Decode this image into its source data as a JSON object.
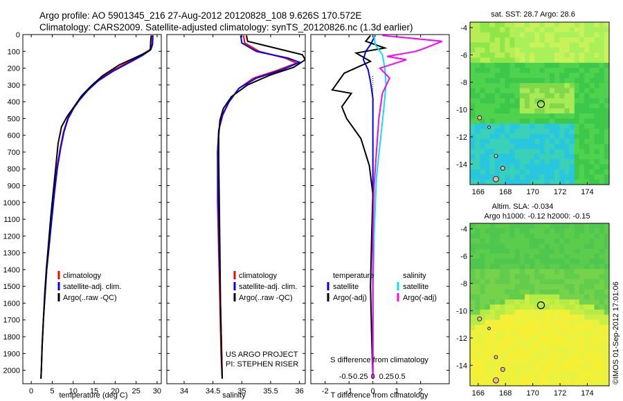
{
  "title": {
    "line1": "Argo profile: AO 5901345_216 27-Aug-2012 20120828_108 9.626S 170.572E",
    "line2": "Climatology: CARS2009. Satellite-adjusted climatology: synTS_20120826.nc (1.3d earlier)"
  },
  "colors": {
    "climatology": "#ff0000",
    "satellite": "#0000ff",
    "argo": "#000000",
    "salinity_satellite": "#00e5ee",
    "salinity_argo": "#ff00ff"
  },
  "chart_data": [
    {
      "type": "line",
      "id": "temperature",
      "xlabel": "temperature (deg C)",
      "xlim": [
        -2,
        31
      ],
      "ylim": [
        2080,
        0
      ],
      "xticks": [
        0,
        5,
        10,
        15,
        20,
        25,
        30
      ],
      "yticks": [
        0,
        100,
        200,
        300,
        400,
        500,
        600,
        700,
        800,
        900,
        1000,
        1100,
        1200,
        1300,
        1400,
        1500,
        1600,
        1700,
        1800,
        1900,
        2000
      ],
      "legend": [
        "climatology",
        "satellite-adj. clim.",
        "Argo(..raw -QC)"
      ],
      "series": [
        {
          "name": "climatology",
          "color": "#ff0000",
          "points": [
            [
              28.9,
              5
            ],
            [
              28.8,
              60
            ],
            [
              28.3,
              90
            ],
            [
              26,
              125
            ],
            [
              23,
              165
            ],
            [
              19,
              220
            ],
            [
              15.8,
              275
            ],
            [
              13.5,
              330
            ],
            [
              11.5,
              390
            ],
            [
              10,
              440
            ],
            [
              8.7,
              500
            ],
            [
              7.7,
              580
            ],
            [
              6.9,
              680
            ],
            [
              6.1,
              800
            ],
            [
              5.4,
              950
            ],
            [
              4.8,
              1100
            ],
            [
              4.3,
              1250
            ],
            [
              3.7,
              1400
            ],
            [
              3.3,
              1550
            ],
            [
              2.9,
              1700
            ],
            [
              2.6,
              1850
            ],
            [
              2.4,
              2000
            ],
            [
              2.3,
              2050
            ]
          ]
        },
        {
          "name": "satellite-adj. clim.",
          "color": "#0000ff",
          "points": [
            [
              29,
              5
            ],
            [
              28.9,
              60
            ],
            [
              28.5,
              90
            ],
            [
              26.5,
              125
            ],
            [
              23.5,
              165
            ],
            [
              19.4,
              220
            ],
            [
              16,
              275
            ],
            [
              13.6,
              330
            ],
            [
              11.5,
              390
            ],
            [
              10.1,
              440
            ],
            [
              8.8,
              500
            ],
            [
              7.8,
              580
            ],
            [
              7,
              680
            ],
            [
              6.2,
              800
            ],
            [
              5.5,
              950
            ],
            [
              4.9,
              1100
            ],
            [
              4.3,
              1250
            ],
            [
              3.7,
              1400
            ],
            [
              3.3,
              1550
            ],
            [
              2.9,
              1700
            ],
            [
              2.6,
              1850
            ],
            [
              2.4,
              2000
            ],
            [
              2.3,
              2050
            ]
          ]
        },
        {
          "name": "Argo(..raw -QC)",
          "color": "#000000",
          "points": [
            [
              28.6,
              5
            ],
            [
              28.5,
              30
            ],
            [
              28.4,
              90
            ],
            [
              27.5,
              105
            ],
            [
              25,
              135
            ],
            [
              21,
              180
            ],
            [
              17,
              245
            ],
            [
              14.3,
              305
            ],
            [
              12,
              365
            ],
            [
              10.2,
              430
            ],
            [
              8.5,
              490
            ],
            [
              7.2,
              550
            ],
            [
              6.4,
              650
            ],
            [
              5.8,
              800
            ],
            [
              5.2,
              950
            ],
            [
              4.6,
              1100
            ],
            [
              4.1,
              1250
            ],
            [
              3.6,
              1400
            ],
            [
              3.2,
              1550
            ],
            [
              2.9,
              1700
            ],
            [
              2.6,
              1850
            ],
            [
              2.4,
              2000
            ],
            [
              2.3,
              2050
            ]
          ]
        }
      ]
    },
    {
      "type": "line",
      "id": "salinity",
      "xlabel": "salinity",
      "xlim": [
        33.7,
        36.1
      ],
      "ylim": [
        2080,
        0
      ],
      "xticks": [
        34,
        34.5,
        35,
        35.5,
        36
      ],
      "legend": [
        "climatology",
        "satellite-adj. clim.",
        "Argo(..raw -QC)"
      ],
      "annotation": [
        "US ARGO PROJECT",
        "PI: STEPHEN RISER"
      ],
      "series": [
        {
          "name": "climatology",
          "color": "#ff0000",
          "points": [
            [
              35.03,
              5
            ],
            [
              35.05,
              50
            ],
            [
              35.3,
              100
            ],
            [
              35.75,
              140
            ],
            [
              35.95,
              170
            ],
            [
              35.6,
              215
            ],
            [
              35.2,
              260
            ],
            [
              34.95,
              320
            ],
            [
              34.78,
              400
            ],
            [
              34.67,
              480
            ],
            [
              34.6,
              570
            ],
            [
              34.58,
              700
            ],
            [
              34.58,
              1000
            ],
            [
              34.6,
              1300
            ],
            [
              34.62,
              1600
            ],
            [
              34.64,
              1900
            ],
            [
              34.66,
              2050
            ]
          ]
        },
        {
          "name": "satellite-adj. clim.",
          "color": "#0000ff",
          "points": [
            [
              34.98,
              5
            ],
            [
              35,
              50
            ],
            [
              35.25,
              100
            ],
            [
              35.8,
              140
            ],
            [
              36,
              165
            ],
            [
              35.7,
              210
            ],
            [
              35.25,
              260
            ],
            [
              34.95,
              320
            ],
            [
              34.78,
              400
            ],
            [
              34.66,
              480
            ],
            [
              34.6,
              570
            ],
            [
              34.58,
              700
            ],
            [
              34.59,
              1000
            ],
            [
              34.61,
              1300
            ],
            [
              34.63,
              1600
            ],
            [
              34.65,
              1900
            ],
            [
              34.66,
              2050
            ]
          ]
        },
        {
          "name": "Argo(..raw -QC)",
          "color": "#000000",
          "points": [
            [
              35.08,
              5
            ],
            [
              35.1,
              40
            ],
            [
              36.05,
              120
            ],
            [
              36.1,
              150
            ],
            [
              35.9,
              195
            ],
            [
              35.5,
              240
            ],
            [
              35.1,
              300
            ],
            [
              34.82,
              370
            ],
            [
              34.68,
              440
            ],
            [
              34.62,
              510
            ],
            [
              34.6,
              600
            ],
            [
              34.6,
              750
            ],
            [
              34.61,
              1000
            ],
            [
              34.62,
              1300
            ],
            [
              34.63,
              1600
            ],
            [
              34.65,
              1900
            ],
            [
              34.66,
              2050
            ]
          ]
        }
      ]
    },
    {
      "type": "line",
      "id": "differences",
      "xlabel": "T difference from climatology",
      "xlim": [
        -2.6,
        3.2
      ],
      "ylim": [
        2080,
        0
      ],
      "xticks": [
        -2,
        -1,
        0,
        1,
        2
      ],
      "top_label": "S difference from climatology",
      "top_ticks": [
        -0.5,
        -0.25,
        0,
        0.25,
        0.5
      ],
      "legend_temperature_title": "temperature",
      "legend_salinity_title": "salinity",
      "legend": [
        "satellite",
        "Argo(-adj)",
        "satellite",
        "Argo(-adj)"
      ],
      "series": [
        {
          "name": "temperature satellite",
          "color": "#0000ff",
          "points": [
            [
              0.1,
              5
            ],
            [
              -0.1,
              60
            ],
            [
              -0.3,
              100
            ],
            [
              -0.4,
              150
            ],
            [
              -0.2,
              210
            ],
            [
              -0.1,
              280
            ],
            [
              0,
              380
            ],
            [
              0,
              600
            ],
            [
              0,
              1000
            ],
            [
              0,
              1400
            ],
            [
              0,
              1800
            ],
            [
              0,
              2050
            ]
          ]
        },
        {
          "name": "temperature Argo(-adj)",
          "color": "#000000",
          "points": [
            [
              -0.1,
              5
            ],
            [
              -0.3,
              40
            ],
            [
              0.5,
              80
            ],
            [
              -0.7,
              110
            ],
            [
              -0.1,
              160
            ],
            [
              -1.2,
              230
            ],
            [
              -1.7,
              330
            ],
            [
              -0.9,
              350
            ],
            [
              -1.3,
              430
            ],
            [
              -1.1,
              500
            ],
            [
              -0.5,
              620
            ],
            [
              -0.15,
              780
            ],
            [
              0,
              950
            ],
            [
              -0.05,
              1200
            ],
            [
              -0.1,
              1500
            ],
            [
              -0.05,
              1800
            ],
            [
              0,
              2050
            ]
          ]
        },
        {
          "name": "salinity satellite",
          "color": "#00e5ee",
          "points": [
            [
              0.05,
              5
            ],
            [
              0.1,
              60
            ],
            [
              0.4,
              120
            ],
            [
              0.5,
              200
            ],
            [
              0.55,
              300
            ],
            [
              0.45,
              450
            ],
            [
              0.3,
              650
            ],
            [
              0.15,
              850
            ],
            [
              0.05,
              1200
            ],
            [
              0,
              1600
            ],
            [
              0,
              2050
            ]
          ]
        },
        {
          "name": "salinity Argo(-adj)",
          "color": "#ff00ff",
          "points": [
            [
              0.4,
              5
            ],
            [
              2.9,
              40
            ],
            [
              2.2,
              80
            ],
            [
              1.8,
              100
            ],
            [
              0.6,
              130
            ],
            [
              1.4,
              150
            ],
            [
              0.3,
              200
            ],
            [
              0.7,
              260
            ],
            [
              0.4,
              350
            ],
            [
              0.25,
              500
            ],
            [
              0.15,
              700
            ],
            [
              0.05,
              900
            ],
            [
              0,
              1200
            ],
            [
              0,
              1600
            ],
            [
              0,
              2050
            ]
          ]
        }
      ]
    },
    {
      "type": "heatmap",
      "id": "sst_map",
      "title": "sat. SST: 28.7 Argo: 28.6",
      "xlim": [
        165.4,
        175.6
      ],
      "ylim": [
        -15.5,
        -3.6
      ],
      "xticks": [
        166,
        168,
        170,
        172,
        174
      ],
      "yticks": [
        -4,
        -6,
        -8,
        -10,
        -12,
        -14
      ],
      "marker": [
        170.6,
        -9.6
      ]
    },
    {
      "type": "heatmap",
      "id": "sla_map",
      "title_line1": "Altim. SLA: -0.034",
      "title_line2": "Argo h1000: -0.12 h2000: -0.15",
      "xlim": [
        165.4,
        175.6
      ],
      "ylim": [
        -15.5,
        -3.6
      ],
      "xticks": [
        166,
        168,
        170,
        172,
        174
      ],
      "yticks": [
        -4,
        -6,
        -8,
        -10,
        -12,
        -14
      ],
      "marker": [
        170.6,
        -9.6
      ]
    }
  ],
  "footer": "©IMOS 01-Sep-2012 17:01:06"
}
